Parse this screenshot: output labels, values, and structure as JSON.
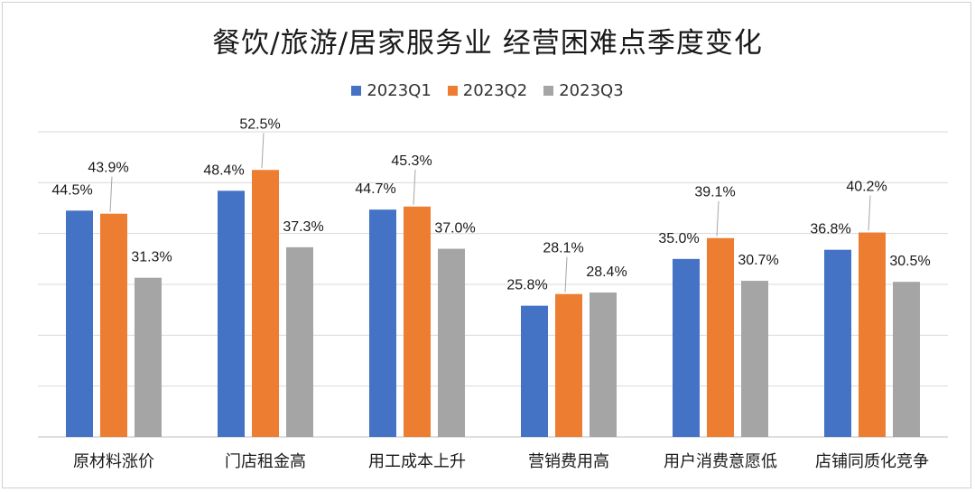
{
  "chart_data": {
    "type": "bar",
    "title": "餐饮/旅游/居家服务业 经营困难点季度变化",
    "categories": [
      "原材料涨价",
      "门店租金高",
      "用工成本上升",
      "营销费用高",
      "用户消费意愿低",
      "店铺同质化竞争"
    ],
    "series": [
      {
        "name": "2023Q1",
        "color": "#4472C4",
        "values": [
          44.5,
          48.4,
          44.7,
          25.8,
          35.0,
          36.8
        ]
      },
      {
        "name": "2023Q2",
        "color": "#ED7D31",
        "values": [
          43.9,
          52.5,
          45.3,
          28.1,
          39.1,
          40.2
        ]
      },
      {
        "name": "2023Q3",
        "color": "#A5A5A5",
        "values": [
          31.3,
          37.3,
          37.0,
          28.4,
          30.7,
          30.5
        ]
      }
    ],
    "ylim": [
      0,
      60
    ],
    "grid": true,
    "legend_position": "top",
    "value_suffix": "%"
  }
}
